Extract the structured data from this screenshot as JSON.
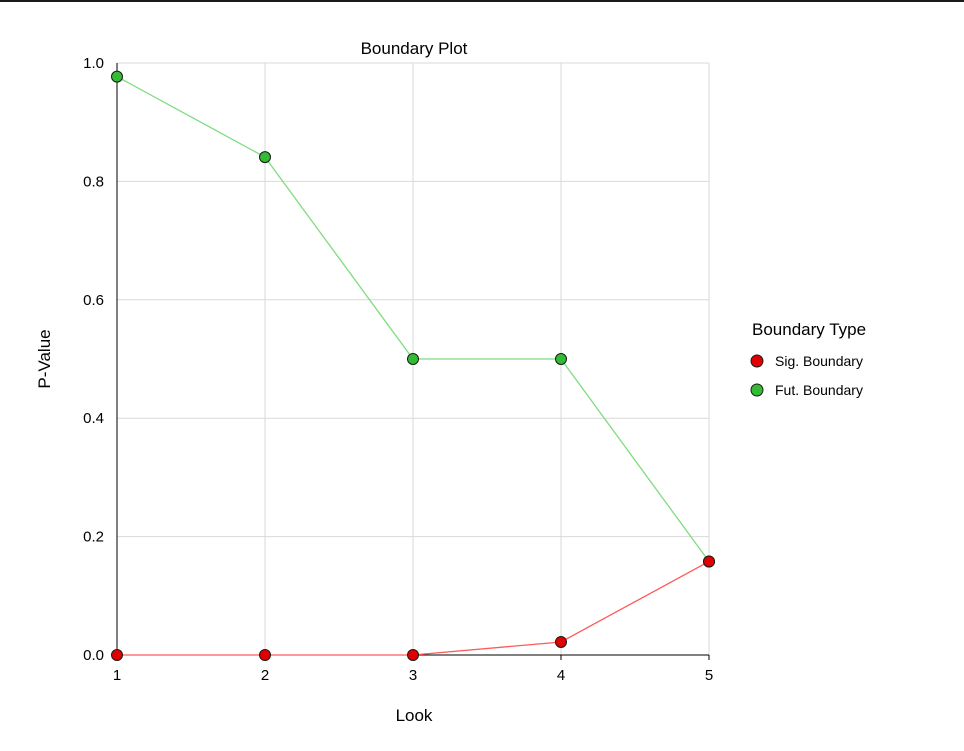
{
  "chart_data": {
    "type": "line",
    "title": "Boundary Plot",
    "xlabel": "Look",
    "ylabel": "P-Value",
    "x": [
      1,
      2,
      3,
      4,
      5
    ],
    "xlim": [
      1,
      5
    ],
    "ylim": [
      0,
      1
    ],
    "xticks": [
      "1",
      "2",
      "3",
      "4",
      "5"
    ],
    "yticks": [
      "0.0",
      "0.2",
      "0.4",
      "0.6",
      "0.8",
      "1.0"
    ],
    "grid": true,
    "legend": {
      "title": "Boundary Type",
      "position": "right"
    },
    "series": [
      {
        "name": "Sig. Boundary",
        "line_color": "#ff5a5a",
        "marker_color": "#e00000",
        "values": [
          0.0,
          0.0,
          0.0,
          0.022,
          0.158
        ]
      },
      {
        "name": "Fut. Boundary",
        "line_color": "#7fdc7f",
        "marker_color": "#33bb33",
        "values": [
          0.977,
          0.841,
          0.5,
          0.5,
          0.158
        ]
      }
    ]
  }
}
